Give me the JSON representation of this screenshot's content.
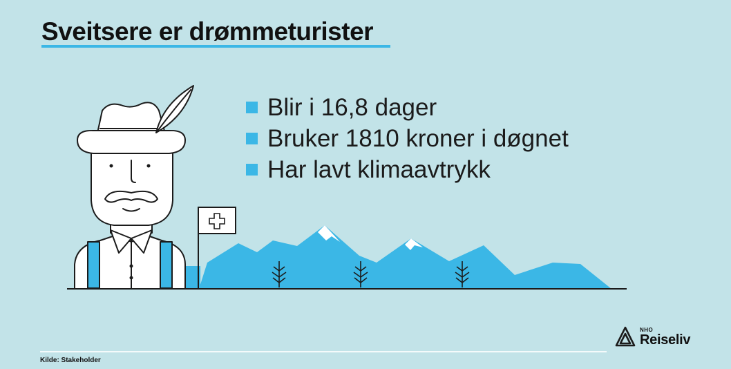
{
  "title": "Sveitsere er drømmeturister",
  "bullets": [
    {
      "text": "Blir i 16,8 dager"
    },
    {
      "text": "Bruker 1810 kroner i døgnet"
    },
    {
      "text": "Har lavt klimaavtrykk"
    }
  ],
  "source": "Kilde: Stakeholder",
  "logo": {
    "small": "NHO",
    "big": "Reiseliv"
  },
  "colors": {
    "background": "#c2e3e8",
    "accent": "#3bb7e6",
    "line": "#1b1b1b"
  },
  "icons": [
    "swiss-tourist-icon",
    "swiss-flag-icon",
    "mountains-icon",
    "tree-icon",
    "nho-logo-icon"
  ]
}
